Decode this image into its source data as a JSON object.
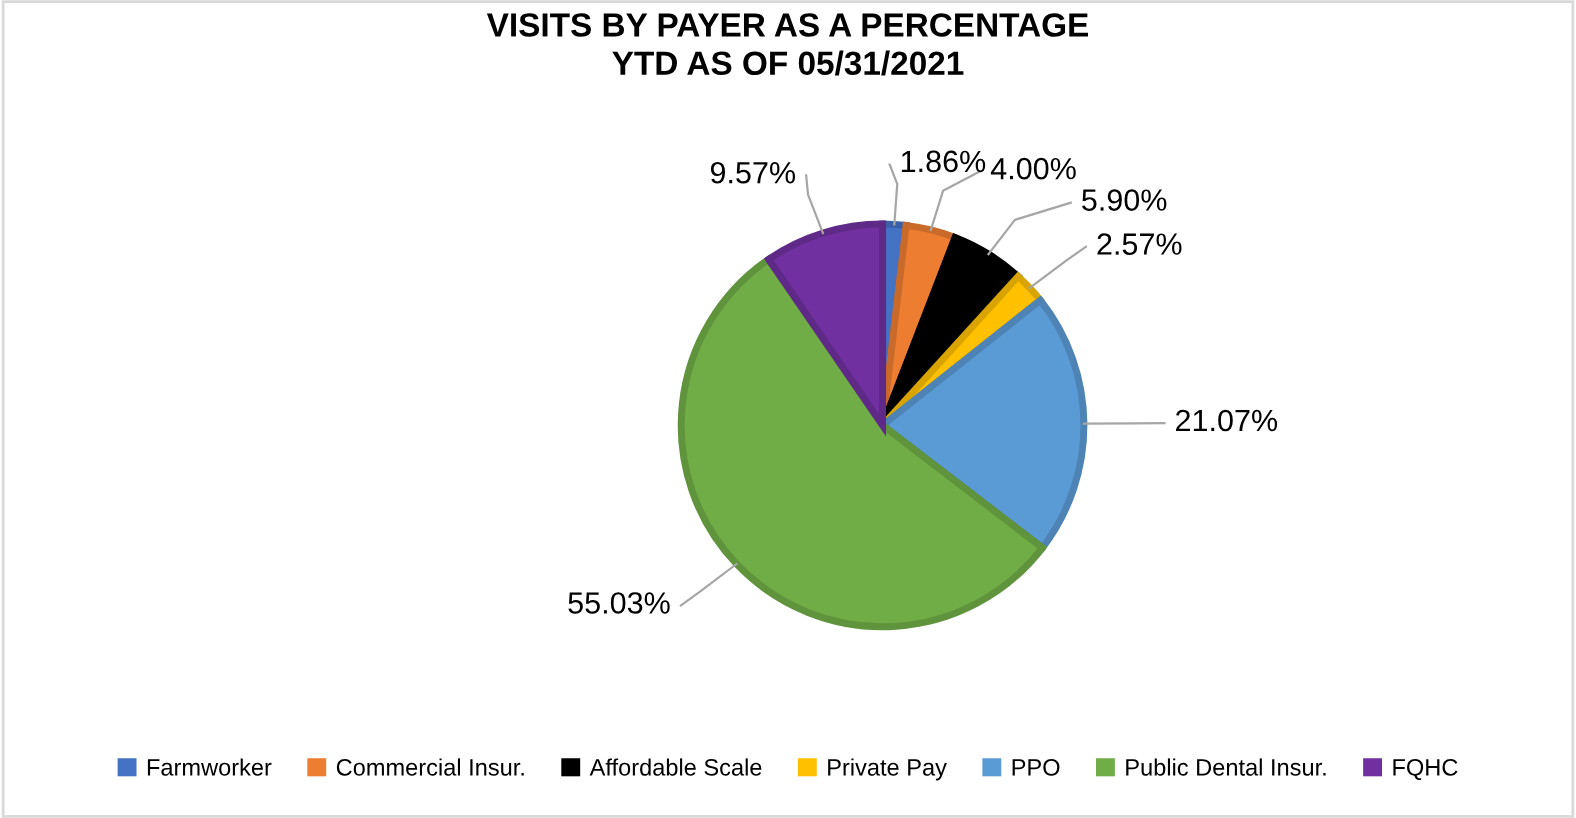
{
  "chart_data": {
    "type": "pie",
    "title": "VISITS BY PAYER AS A PERCENTAGE\nYTD AS OF 05/31/2021",
    "categories": [
      "Farmworker",
      "Commercial Insur.",
      "Affordable Scale",
      "Private Pay",
      "PPO",
      "Public Dental Insur.",
      "FQHC"
    ],
    "values": [
      1.86,
      4.0,
      5.9,
      2.57,
      21.07,
      55.03,
      9.57
    ],
    "colors": [
      "#4472c4",
      "#ed7d31",
      "#000000",
      "#ffc000",
      "#5b9bd5",
      "#70ad47",
      "#7030a0"
    ],
    "value_labels": [
      "1.86%",
      "4.00%",
      "5.90%",
      "2.57%",
      "21.07%",
      "55.03%",
      "9.57%"
    ],
    "legend": "bottom"
  }
}
